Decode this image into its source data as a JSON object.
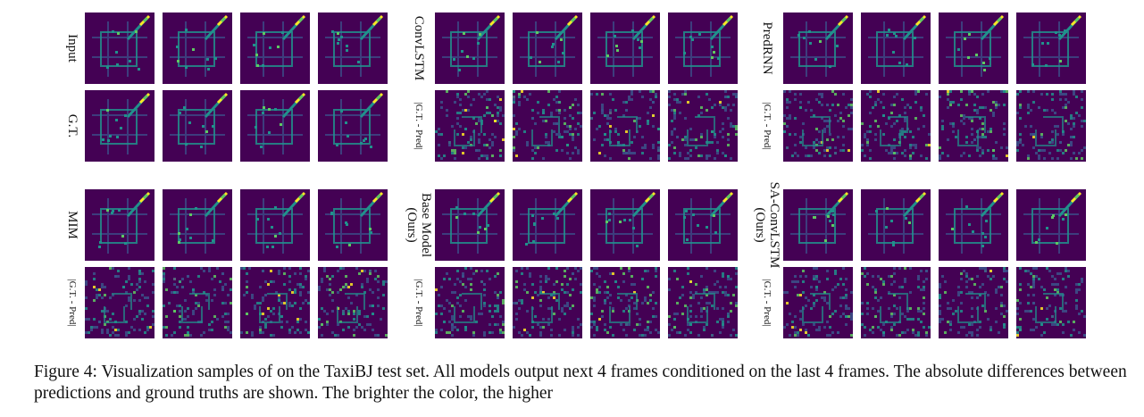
{
  "figure": {
    "panels": [
      {
        "id": "input-gt",
        "top_label": [
          "Input"
        ],
        "bottom_label": [
          "G.T."
        ]
      },
      {
        "id": "convlstm",
        "top_label": [
          "ConvLSTM"
        ],
        "bottom_label": [
          "|G.T. - Pred|"
        ]
      },
      {
        "id": "predrnn",
        "top_label": [
          "PredRNN"
        ],
        "bottom_label": [
          "|G.T. - Pred|"
        ]
      },
      {
        "id": "mim",
        "top_label": [
          "MIM"
        ],
        "bottom_label": [
          "|G.T. - Pred|"
        ]
      },
      {
        "id": "base-model",
        "top_label": [
          "Base Model",
          "(Ours)"
        ],
        "bottom_label": [
          "|G.T. - Pred|"
        ]
      },
      {
        "id": "sa-convlstm",
        "top_label": [
          "SA-ConvLSTM",
          "(Ours)"
        ],
        "bottom_label": [
          "|G.T. - Pred|"
        ]
      }
    ],
    "colormap": {
      "background": "#440154",
      "road": "#3b528b",
      "road_bright": "#21918c",
      "hot": "#5ec962",
      "hottest": "#fde725"
    }
  },
  "caption": {
    "text": "Figure 4: Visualization samples of on the TaxiBJ test set. All models output next 4 frames conditioned on the last 4 frames. The absolute differences between predictions and ground truths are shown. The brighter the color, the higher"
  }
}
